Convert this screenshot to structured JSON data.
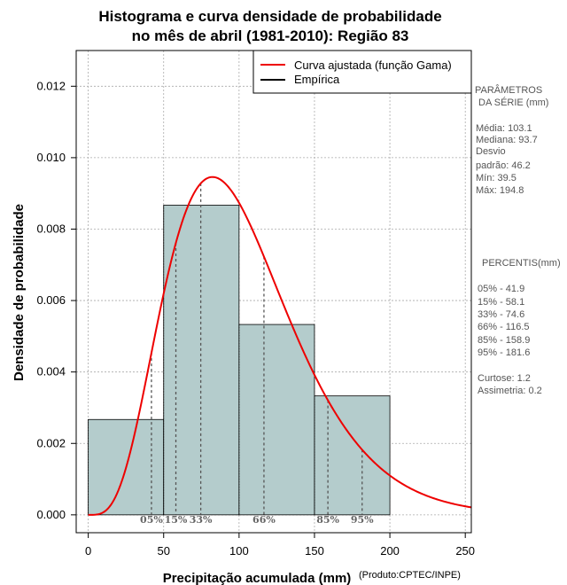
{
  "chart_data": {
    "type": "bar",
    "title_lines": [
      "Histograma e curva densidade de probabilidade",
      "no mês de abril (1981-2010): Região 83"
    ],
    "xlabel": "Precipitação acumulada (mm)",
    "ylabel": "Densidade de probabilidade",
    "credit": "(Produto:CPTEC/INPE)",
    "xlim": [
      -8,
      254
    ],
    "ylim": [
      -0.0005,
      0.013
    ],
    "x_ticks": [
      0,
      50,
      100,
      150,
      200,
      250
    ],
    "y_ticks": [
      0.0,
      0.002,
      0.004,
      0.006,
      0.008,
      0.01,
      0.012
    ],
    "y_tick_labels": [
      "0.000",
      "0.002",
      "0.004",
      "0.006",
      "0.008",
      "0.010",
      "0.012"
    ],
    "grid": true,
    "bins": [
      {
        "x0": 0,
        "x1": 50,
        "density": 0.00267
      },
      {
        "x0": 50,
        "x1": 100,
        "density": 0.00867
      },
      {
        "x0": 100,
        "x1": 150,
        "density": 0.00533
      },
      {
        "x0": 150,
        "x1": 200,
        "density": 0.00333
      }
    ],
    "gamma_fit": {
      "mean": 103.1,
      "sd": 46.2
    },
    "percentile_markers": [
      {
        "label": "05%",
        "x": 41.9
      },
      {
        "label": "15%",
        "x": 58.1
      },
      {
        "label": "33%",
        "x": 74.6
      },
      {
        "label": "66%",
        "x": 116.5
      },
      {
        "label": "85%",
        "x": 158.9
      },
      {
        "label": "95%",
        "x": 181.6
      }
    ],
    "legend": {
      "placement": "top-right",
      "entries": [
        {
          "label": "Curva ajustada (função Gama)",
          "color": "#ee0000"
        },
        {
          "label": "Empírica",
          "color": "#000000"
        }
      ]
    },
    "colors": {
      "bar_fill": "#b4cccc",
      "curve": "#ee0000",
      "grid": "#aaaaaa"
    }
  },
  "side_panel": {
    "params_title": [
      "PARÂMETROS",
      "DA SÉRIE (mm)"
    ],
    "params": [
      "Média:  103.1",
      "Mediana:  93.7",
      "Desvio",
      "padrão:  46.2",
      "Mín:  39.5",
      "Máx:  194.8"
    ],
    "percentis_title": "PERCENTIS(mm)",
    "percentis": [
      "05% -   41.9",
      "15% -   58.1",
      "33% -   74.6",
      "66% -   116.5",
      "85% -   158.9",
      "95% -   181.6"
    ],
    "shape": [
      "Curtose:  1.2",
      "Assimetria:  0.2"
    ]
  }
}
